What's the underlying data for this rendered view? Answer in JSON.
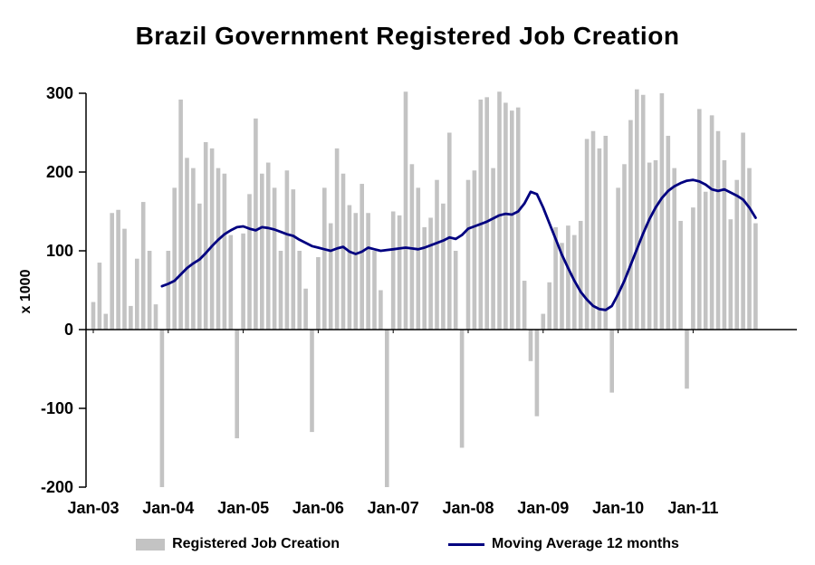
{
  "title": "Brazil Government Registered Job Creation",
  "y_axis_label": "x 1000",
  "legend": {
    "bars_label": "Registered Job Creation",
    "line_label": "Moving Average 12 months"
  },
  "colors": {
    "bar": "#c3c3c3",
    "line": "#000080",
    "axis": "#000000",
    "text": "#000000",
    "background": "#ffffff"
  },
  "chart_data": {
    "type": "bar",
    "title": "Brazil Government Registered Job Creation",
    "ylabel": "x 1000",
    "ylim": [
      -200,
      300
    ],
    "y_ticks": [
      300,
      200,
      100,
      0,
      -100,
      -200
    ],
    "x_tick_labels": [
      "Jan-03",
      "Jan-04",
      "Jan-05",
      "Jan-06",
      "Jan-07",
      "Jan-08",
      "Jan-09",
      "Jan-10",
      "Jan-11"
    ],
    "x_start": "Jan-03",
    "frequency": "monthly",
    "grid": false,
    "legend_position": "bottom",
    "series": [
      {
        "name": "Registered Job Creation",
        "type": "bar",
        "values": [
          35,
          85,
          20,
          148,
          152,
          128,
          30,
          90,
          162,
          100,
          32,
          -200,
          100,
          180,
          292,
          218,
          205,
          160,
          238,
          230,
          205,
          198,
          120,
          -138,
          122,
          172,
          268,
          198,
          212,
          180,
          100,
          202,
          178,
          100,
          52,
          -130,
          92,
          180,
          135,
          230,
          198,
          158,
          148,
          185,
          148,
          100,
          50,
          -200,
          150,
          145,
          302,
          210,
          180,
          130,
          142,
          190,
          160,
          250,
          100,
          -150,
          190,
          202,
          292,
          295,
          205,
          302,
          288,
          278,
          282,
          62,
          -40,
          -110,
          20,
          60,
          130,
          110,
          132,
          120,
          138,
          242,
          252,
          230,
          246,
          -80,
          180,
          210,
          266,
          305,
          298,
          212,
          215,
          300,
          246,
          205,
          138,
          -75,
          155,
          280,
          175,
          272,
          252,
          215,
          140,
          190,
          250,
          205,
          135
        ]
      },
      {
        "name": "Moving Average 12 months",
        "type": "line",
        "values": [
          null,
          null,
          null,
          null,
          null,
          null,
          null,
          null,
          null,
          null,
          null,
          55,
          58,
          62,
          70,
          78,
          84,
          89,
          97,
          106,
          114,
          121,
          126,
          130,
          131,
          128,
          126,
          130,
          129,
          127,
          124,
          121,
          119,
          114,
          110,
          106,
          104,
          102,
          100,
          103,
          105,
          99,
          96,
          99,
          104,
          102,
          100,
          101,
          102,
          103,
          104,
          103,
          102,
          104,
          107,
          110,
          113,
          117,
          115,
          120,
          128,
          131,
          134,
          137,
          141,
          145,
          147,
          146,
          150,
          160,
          175,
          172,
          155,
          135,
          115,
          95,
          78,
          62,
          48,
          38,
          30,
          26,
          25,
          30,
          45,
          62,
          82,
          102,
          122,
          140,
          155,
          167,
          176,
          182,
          186,
          189,
          190,
          188,
          184,
          178,
          176,
          178,
          174,
          170,
          165,
          155,
          142
        ]
      }
    ]
  }
}
